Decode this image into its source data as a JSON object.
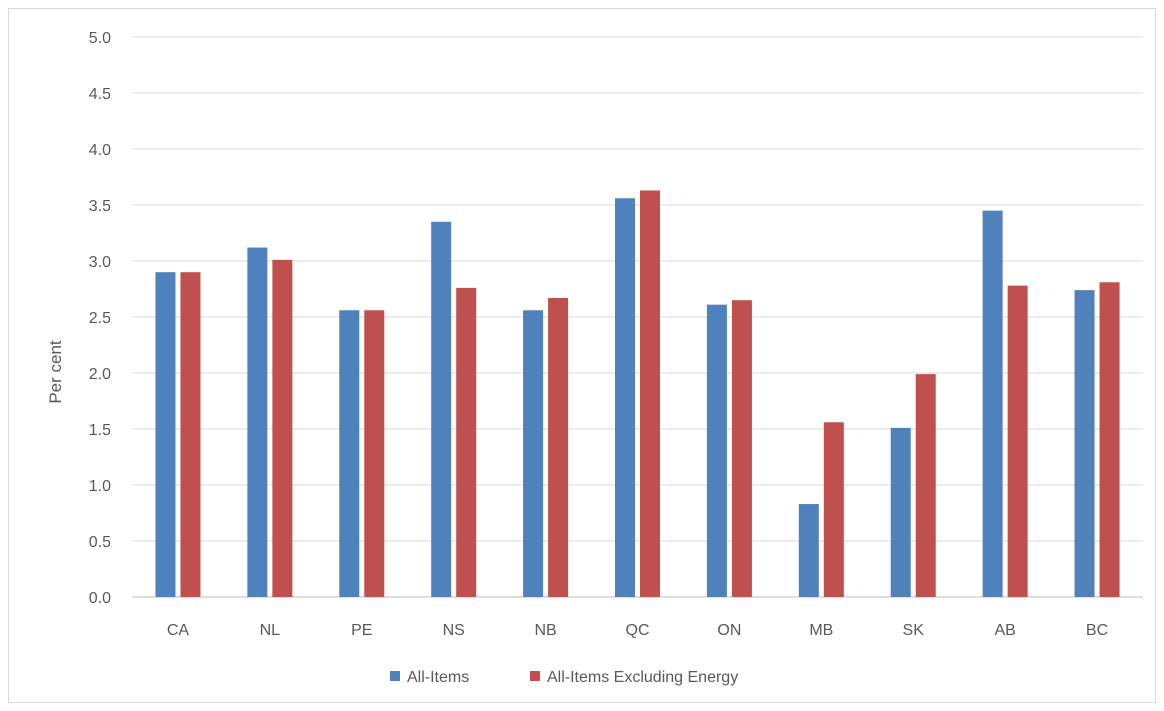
{
  "chart_data": {
    "type": "bar",
    "title": "",
    "xlabel": "",
    "ylabel": "Per cent",
    "ylim": [
      0,
      5.0
    ],
    "ytick_step": 0.5,
    "grid": true,
    "legend_position": "bottom",
    "categories": [
      "CA",
      "NL",
      "PE",
      "NS",
      "NB",
      "QC",
      "ON",
      "MB",
      "SK",
      "AB",
      "BC"
    ],
    "series": [
      {
        "name": "All-Items",
        "color": "#4f81bd",
        "values": [
          2.9,
          3.12,
          2.56,
          3.35,
          2.56,
          3.56,
          2.61,
          0.83,
          1.51,
          3.45,
          2.74
        ]
      },
      {
        "name": "All-Items Excluding Energy",
        "color": "#c0504d",
        "values": [
          2.9,
          3.01,
          2.56,
          2.76,
          2.67,
          3.63,
          2.65,
          1.56,
          1.99,
          2.78,
          2.81
        ]
      }
    ]
  }
}
